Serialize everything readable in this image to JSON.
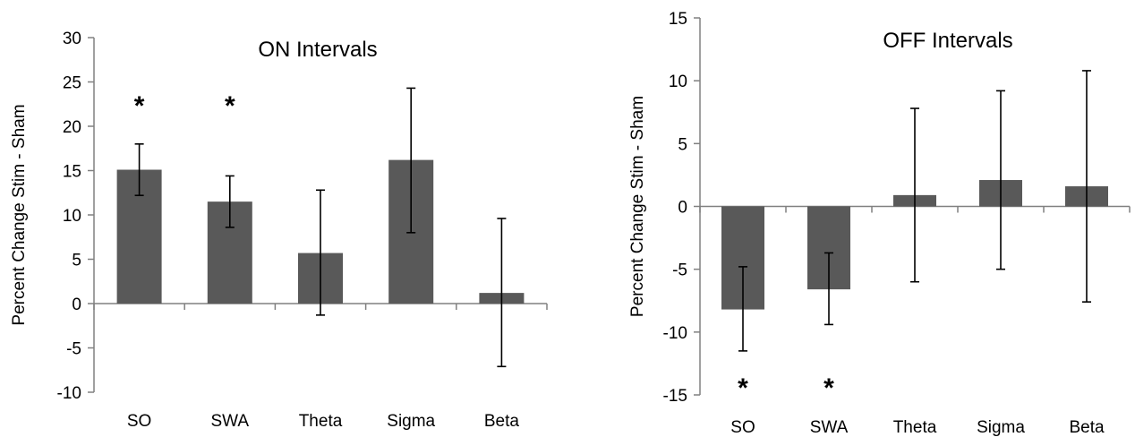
{
  "chart_data": [
    {
      "type": "bar",
      "title": "ON Intervals",
      "ylabel": "Percent Change Stim - Sham",
      "xlabel": "",
      "categories": [
        "SO",
        "SWA",
        "Theta",
        "Sigma",
        "Beta"
      ],
      "values": [
        15.1,
        11.5,
        5.7,
        16.2,
        1.2
      ],
      "error_low": [
        12.2,
        8.6,
        -1.3,
        8.0,
        -7.1
      ],
      "error_high": [
        18.0,
        14.4,
        12.8,
        24.3,
        9.6
      ],
      "significant": [
        "*",
        "*",
        "",
        "",
        ""
      ],
      "ylim": [
        -10,
        30
      ],
      "yticks": [
        -10,
        -5,
        0,
        5,
        10,
        15,
        20,
        25,
        30
      ],
      "ytick_labels": [
        "-10",
        "-5",
        "0",
        "5",
        "10",
        "15",
        "20",
        "25",
        "30"
      ],
      "bar_color": "#595959",
      "grid": false
    },
    {
      "type": "bar",
      "title": "OFF Intervals",
      "ylabel": "Percent Change Stim - Sham",
      "xlabel": "",
      "categories": [
        "SO",
        "SWA",
        "Theta",
        "Sigma",
        "Beta"
      ],
      "values": [
        -8.2,
        -6.6,
        0.9,
        2.1,
        1.6
      ],
      "error_low": [
        -11.5,
        -9.4,
        -6.0,
        -5.0,
        -7.6
      ],
      "error_high": [
        -4.8,
        -3.7,
        7.8,
        9.2,
        10.8
      ],
      "significant": [
        "*",
        "*",
        "",
        "",
        ""
      ],
      "ylim": [
        -15,
        15
      ],
      "yticks": [
        -15,
        -10,
        -5,
        0,
        5,
        10,
        15
      ],
      "ytick_labels": [
        "-15",
        "-10",
        "-5",
        "0",
        "5",
        "10",
        "15"
      ],
      "bar_color": "#595959",
      "grid": false
    }
  ]
}
